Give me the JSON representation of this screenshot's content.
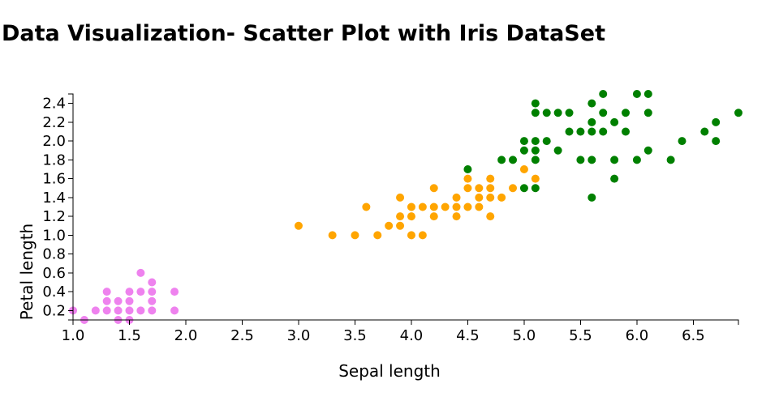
{
  "page": {
    "title": "Data Visualization- Scatter Plot with Iris DataSet"
  },
  "chart_data": {
    "type": "scatter",
    "title": "Data Visualization- Scatter Plot with Iris DataSet",
    "xlabel": "Sepal length",
    "ylabel": "Petal length",
    "xlim": [
      1.0,
      6.9
    ],
    "ylim": [
      0.1,
      2.5
    ],
    "x_ticks": [
      "1.0",
      "1.5",
      "2.0",
      "2.5",
      "3.0",
      "3.5",
      "4.0",
      "4.5",
      "5.0",
      "5.5",
      "6.0",
      "6.5"
    ],
    "y_ticks": [
      "0.2",
      "0.4",
      "0.6",
      "0.8",
      "1.0",
      "1.2",
      "1.4",
      "1.6",
      "1.8",
      "2.0",
      "2.2",
      "2.4"
    ],
    "grid": false,
    "legend": "none",
    "series": [
      {
        "color": "#ee82ee",
        "points": [
          [
            1.0,
            0.2
          ],
          [
            1.1,
            0.1
          ],
          [
            1.2,
            0.2
          ],
          [
            1.3,
            0.2
          ],
          [
            1.3,
            0.3
          ],
          [
            1.3,
            0.4
          ],
          [
            1.4,
            0.1
          ],
          [
            1.4,
            0.2
          ],
          [
            1.4,
            0.3
          ],
          [
            1.5,
            0.1
          ],
          [
            1.5,
            0.2
          ],
          [
            1.5,
            0.3
          ],
          [
            1.5,
            0.4
          ],
          [
            1.6,
            0.2
          ],
          [
            1.6,
            0.4
          ],
          [
            1.6,
            0.6
          ],
          [
            1.7,
            0.2
          ],
          [
            1.7,
            0.3
          ],
          [
            1.7,
            0.4
          ],
          [
            1.7,
            0.5
          ],
          [
            1.9,
            0.2
          ],
          [
            1.9,
            0.4
          ]
        ]
      },
      {
        "color": "#ffa500",
        "points": [
          [
            3.0,
            1.1
          ],
          [
            3.3,
            1.0
          ],
          [
            3.5,
            1.0
          ],
          [
            3.6,
            1.3
          ],
          [
            3.7,
            1.0
          ],
          [
            3.8,
            1.1
          ],
          [
            3.9,
            1.1
          ],
          [
            3.9,
            1.2
          ],
          [
            3.9,
            1.4
          ],
          [
            4.0,
            1.0
          ],
          [
            4.0,
            1.2
          ],
          [
            4.0,
            1.3
          ],
          [
            4.1,
            1.0
          ],
          [
            4.1,
            1.3
          ],
          [
            4.2,
            1.2
          ],
          [
            4.2,
            1.3
          ],
          [
            4.2,
            1.5
          ],
          [
            4.3,
            1.3
          ],
          [
            4.4,
            1.2
          ],
          [
            4.4,
            1.3
          ],
          [
            4.4,
            1.4
          ],
          [
            4.5,
            1.3
          ],
          [
            4.5,
            1.5
          ],
          [
            4.5,
            1.6
          ],
          [
            4.6,
            1.3
          ],
          [
            4.6,
            1.4
          ],
          [
            4.6,
            1.5
          ],
          [
            4.7,
            1.2
          ],
          [
            4.7,
            1.4
          ],
          [
            4.7,
            1.5
          ],
          [
            4.7,
            1.6
          ],
          [
            4.8,
            1.4
          ],
          [
            4.9,
            1.5
          ],
          [
            5.0,
            1.7
          ],
          [
            5.1,
            1.6
          ]
        ]
      },
      {
        "color": "#008000",
        "points": [
          [
            4.5,
            1.7
          ],
          [
            4.8,
            1.8
          ],
          [
            4.9,
            1.8
          ],
          [
            5.0,
            1.5
          ],
          [
            5.0,
            1.9
          ],
          [
            5.0,
            2.0
          ],
          [
            5.1,
            1.5
          ],
          [
            5.1,
            1.8
          ],
          [
            5.1,
            1.9
          ],
          [
            5.1,
            2.0
          ],
          [
            5.1,
            2.3
          ],
          [
            5.1,
            2.4
          ],
          [
            5.2,
            2.0
          ],
          [
            5.2,
            2.3
          ],
          [
            5.3,
            1.9
          ],
          [
            5.3,
            2.3
          ],
          [
            5.4,
            2.1
          ],
          [
            5.4,
            2.3
          ],
          [
            5.5,
            1.8
          ],
          [
            5.5,
            2.1
          ],
          [
            5.6,
            1.4
          ],
          [
            5.6,
            1.8
          ],
          [
            5.6,
            2.1
          ],
          [
            5.6,
            2.2
          ],
          [
            5.6,
            2.4
          ],
          [
            5.7,
            2.1
          ],
          [
            5.7,
            2.3
          ],
          [
            5.7,
            2.5
          ],
          [
            5.8,
            1.6
          ],
          [
            5.8,
            1.8
          ],
          [
            5.8,
            2.2
          ],
          [
            5.9,
            2.1
          ],
          [
            5.9,
            2.3
          ],
          [
            6.0,
            1.8
          ],
          [
            6.0,
            2.5
          ],
          [
            6.1,
            1.9
          ],
          [
            6.1,
            2.3
          ],
          [
            6.1,
            2.5
          ],
          [
            6.3,
            1.8
          ],
          [
            6.4,
            2.0
          ],
          [
            6.6,
            2.1
          ],
          [
            6.7,
            2.0
          ],
          [
            6.7,
            2.2
          ],
          [
            6.9,
            2.3
          ]
        ]
      }
    ]
  }
}
